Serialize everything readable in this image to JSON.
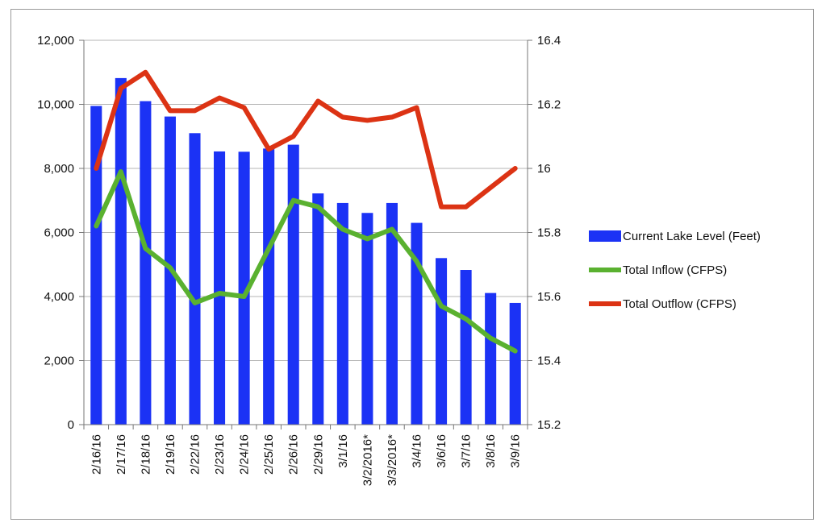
{
  "chart_data": {
    "type": "bar-line-combo",
    "title": "",
    "xlabel": "",
    "ylabel": "",
    "categories": [
      "2/16/16",
      "2/17/16",
      "2/18/16",
      "2/19/16",
      "2/22/16",
      "2/23/16",
      "2/24/16",
      "2/25/16",
      "2/26/16",
      "2/29/16",
      "3/1/16",
      "3/2/2016*",
      "3/3/2016*",
      "3/4/16",
      "3/6/16",
      "3/7/16",
      "3/8/16",
      "3/9/16"
    ],
    "ylim_left": [
      0,
      12000
    ],
    "ylim_right": [
      15.2,
      16.4
    ],
    "y_ticks_left": [
      "0",
      "2,000",
      "4,000",
      "6,000",
      "8,000",
      "10,000",
      "12,000"
    ],
    "y_ticks_right": [
      "15.2",
      "15.4",
      "15.6",
      "15.8",
      "16",
      "16.2",
      "16.4"
    ],
    "grid": true,
    "legend_position": "right",
    "series": [
      {
        "name": "Current Lake Level (Feet)",
        "kind": "bar",
        "axis": "left",
        "color": "#1b32f5",
        "values": [
          9950,
          10820,
          10100,
          9620,
          9100,
          8530,
          8520,
          8620,
          8740,
          7220,
          6920,
          6610,
          6920,
          6300,
          5200,
          4830,
          4110,
          3800
        ]
      },
      {
        "name": "Total Inflow (CFPS)",
        "kind": "line",
        "axis": "right",
        "color": "#5ab130",
        "values": [
          15.82,
          15.99,
          15.75,
          15.69,
          15.58,
          15.61,
          15.6,
          15.75,
          15.9,
          15.88,
          15.81,
          15.78,
          15.81,
          15.71,
          15.57,
          15.53,
          15.47,
          15.43
        ]
      },
      {
        "name": "Total Outflow (CFPS)",
        "kind": "line",
        "axis": "right",
        "color": "#dc3314",
        "values": [
          16.0,
          16.25,
          16.3,
          16.18,
          16.18,
          16.22,
          16.19,
          16.06,
          16.1,
          16.21,
          16.16,
          16.15,
          16.16,
          16.19,
          15.88,
          15.88,
          15.94,
          16.0
        ]
      }
    ]
  }
}
